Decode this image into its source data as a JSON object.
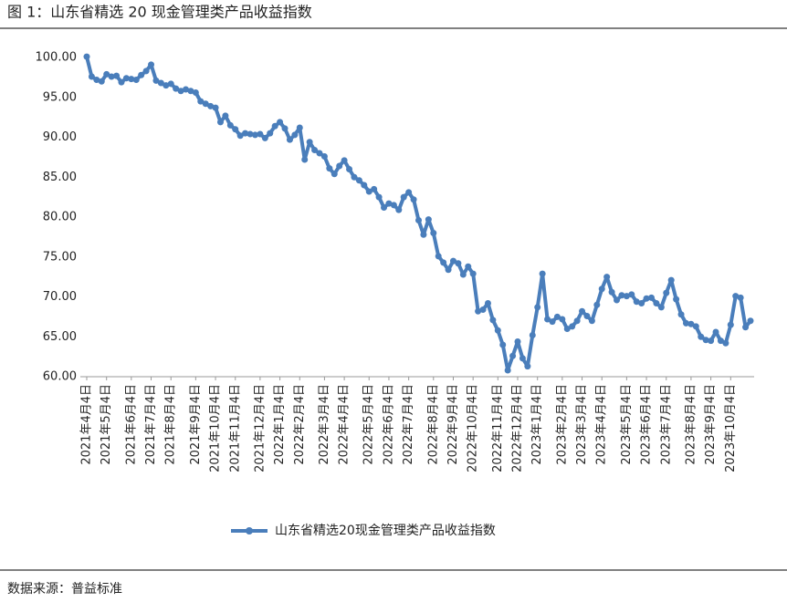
{
  "chart_data": {
    "type": "line",
    "title": "图 1：山东省精选 20 现金管理类产品收益指数",
    "source": "数据来源：普益标准",
    "categories": [
      "2021年4月4日",
      null,
      null,
      null,
      "2021年5月4日",
      null,
      null,
      null,
      null,
      "2021年6月4日",
      null,
      null,
      null,
      "2021年7月4日",
      null,
      null,
      null,
      "2021年8月4日",
      null,
      null,
      null,
      null,
      "2021年9月4日",
      null,
      null,
      null,
      "2021年10月4日",
      null,
      null,
      null,
      "2021年11月4日",
      null,
      null,
      null,
      null,
      "2021年12月4日",
      null,
      null,
      null,
      "2022年1月4日",
      null,
      null,
      null,
      "2022年2月4日",
      null,
      null,
      null,
      null,
      "2022年3月4日",
      null,
      null,
      null,
      "2022年4月4日",
      null,
      null,
      null,
      null,
      "2022年5月4日",
      null,
      null,
      null,
      "2022年6月4日",
      null,
      null,
      null,
      "2022年7月4日",
      null,
      null,
      null,
      null,
      "2022年8月4日",
      null,
      null,
      null,
      "2022年9月4日",
      null,
      null,
      null,
      "2022年10月4日",
      null,
      null,
      null,
      null,
      "2022年11月4日",
      null,
      null,
      null,
      "2022年12月4日",
      null,
      null,
      null,
      "2023年1月4日",
      null,
      null,
      null,
      null,
      "2023年2月4日",
      null,
      null,
      null,
      "2023年3月4日",
      null,
      null,
      null,
      "2023年4月4日",
      null,
      null,
      null,
      null,
      "2023年5月4日",
      null,
      null,
      null,
      "2023年6月4日",
      null,
      null,
      null,
      "2023年7月4日",
      null,
      null,
      null,
      null,
      "2023年8月4日",
      null,
      null,
      null,
      "2023年9月4日",
      null,
      null,
      null,
      "2023年10月4日",
      null,
      null,
      null,
      null
    ],
    "series": [
      {
        "name": "山东省精选20现金管理类产品收益指数",
        "color": "#4a7ebb",
        "values": [
          100.1,
          97.6,
          97.2,
          97.0,
          97.9,
          97.6,
          97.7,
          96.9,
          97.4,
          97.3,
          97.2,
          97.8,
          98.3,
          99.1,
          97.1,
          96.8,
          96.5,
          96.7,
          96.1,
          95.8,
          96.0,
          95.8,
          95.6,
          94.5,
          94.2,
          93.9,
          93.7,
          91.9,
          92.7,
          91.5,
          91.0,
          90.2,
          90.5,
          90.4,
          90.3,
          90.4,
          89.9,
          90.5,
          91.4,
          91.9,
          91.1,
          89.7,
          90.3,
          91.2,
          87.2,
          89.4,
          88.4,
          88.0,
          87.6,
          86.1,
          85.4,
          86.4,
          87.1,
          86.0,
          85.0,
          84.6,
          84.0,
          83.2,
          83.5,
          82.5,
          81.2,
          81.7,
          81.5,
          80.9,
          82.5,
          83.1,
          82.2,
          79.6,
          77.8,
          79.7,
          78.0,
          75.1,
          74.3,
          73.4,
          74.5,
          74.2,
          72.8,
          73.8,
          72.9,
          68.2,
          68.4,
          69.2,
          67.1,
          65.8,
          64.0,
          60.8,
          62.6,
          64.4,
          62.3,
          61.3,
          65.2,
          68.7,
          72.9,
          67.2,
          66.9,
          67.5,
          67.2,
          66.0,
          66.3,
          67.0,
          68.2,
          67.6,
          67.0,
          69.0,
          71.0,
          72.5,
          70.6,
          69.6,
          70.2,
          70.1,
          70.3,
          69.4,
          69.2,
          69.8,
          69.9,
          69.2,
          68.7,
          70.5,
          72.1,
          69.7,
          67.8,
          66.7,
          66.6,
          66.3,
          65.0,
          64.6,
          64.5,
          65.6,
          64.5,
          64.2,
          66.5,
          70.1,
          69.9,
          66.2,
          67.0
        ]
      }
    ],
    "ylim": [
      60,
      100
    ],
    "yticks": [
      {
        "value": 60,
        "label": "60.00"
      },
      {
        "value": 65,
        "label": "65.00"
      },
      {
        "value": 70,
        "label": "70.00"
      },
      {
        "value": 75,
        "label": "75.00"
      },
      {
        "value": 80,
        "label": "80.00"
      },
      {
        "value": 85,
        "label": "85.00"
      },
      {
        "value": 90,
        "label": "90.00"
      },
      {
        "value": 95,
        "label": "95.00"
      },
      {
        "value": 100,
        "label": "100.00"
      }
    ],
    "grid": false,
    "legend": "bottom"
  }
}
